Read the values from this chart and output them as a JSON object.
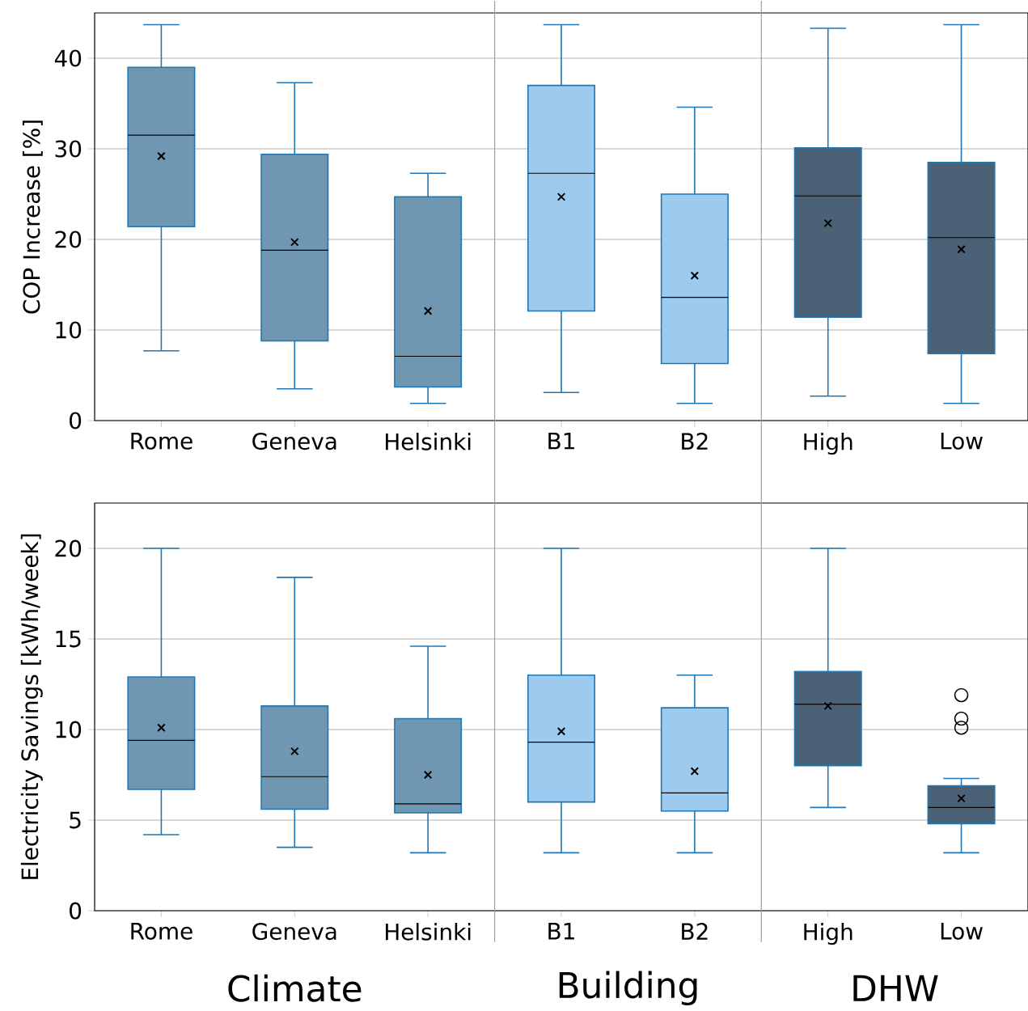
{
  "chart_data": [
    {
      "type": "box",
      "ylabel": "COP Increase [%]",
      "categories": [
        "Rome",
        "Geneva",
        "Helsinki",
        "B1",
        "B2",
        "High",
        "Low"
      ],
      "colors": [
        "#7097b2",
        "#7097b2",
        "#7097b2",
        "#9ccbef",
        "#9ccbef",
        "#4b6276",
        "#4b6276"
      ],
      "boxes": [
        {
          "low": 7.7,
          "q1": 21.4,
          "median": 31.5,
          "q3": 39.0,
          "high": 43.7,
          "mean": 29.2
        },
        {
          "low": 3.5,
          "q1": 8.8,
          "median": 18.8,
          "q3": 29.4,
          "high": 37.3,
          "mean": 19.7
        },
        {
          "low": 1.9,
          "q1": 3.7,
          "median": 7.1,
          "q3": 24.7,
          "high": 27.3,
          "mean": 12.1
        },
        {
          "low": 3.1,
          "q1": 12.1,
          "median": 27.3,
          "q3": 37.0,
          "high": 43.7,
          "mean": 24.7
        },
        {
          "low": 1.9,
          "q1": 6.3,
          "median": 13.6,
          "q3": 25.0,
          "high": 34.6,
          "mean": 16.0
        },
        {
          "low": 2.7,
          "q1": 11.4,
          "median": 24.8,
          "q3": 30.1,
          "high": 43.3,
          "mean": 21.8
        },
        {
          "low": 1.9,
          "q1": 7.4,
          "median": 20.2,
          "q3": 28.5,
          "high": 43.7,
          "mean": 18.9
        }
      ],
      "ylim": [
        0,
        45
      ],
      "yticks": [
        0,
        10,
        20,
        30,
        40
      ],
      "grid": "y",
      "marker": "cross"
    },
    {
      "type": "box",
      "ylabel": "Electricity Savings [kWh/week]",
      "categories": [
        "Rome",
        "Geneva",
        "Helsinki",
        "B1",
        "B2",
        "High",
        "Low"
      ],
      "colors": [
        "#7097b2",
        "#7097b2",
        "#7097b2",
        "#9ccbef",
        "#9ccbef",
        "#4b6276",
        "#4b6276"
      ],
      "boxes": [
        {
          "low": 4.2,
          "q1": 6.7,
          "median": 9.4,
          "q3": 12.9,
          "high": 20.0,
          "mean": 10.1
        },
        {
          "low": 3.5,
          "q1": 5.6,
          "median": 7.4,
          "q3": 11.3,
          "high": 18.4,
          "mean": 8.8
        },
        {
          "low": 3.2,
          "q1": 5.4,
          "median": 5.9,
          "q3": 10.6,
          "high": 14.6,
          "mean": 7.5
        },
        {
          "low": 3.2,
          "q1": 6.0,
          "median": 9.3,
          "q3": 13.0,
          "high": 20.0,
          "mean": 9.9
        },
        {
          "low": 3.2,
          "q1": 5.5,
          "median": 6.5,
          "q3": 11.2,
          "high": 13.0,
          "mean": 7.7
        },
        {
          "low": 5.7,
          "q1": 8.0,
          "median": 11.4,
          "q3": 13.2,
          "high": 20.0,
          "mean": 11.3
        },
        {
          "low": 3.2,
          "q1": 4.8,
          "median": 5.7,
          "q3": 6.9,
          "high": 7.3,
          "mean": 6.2,
          "outliers": [
            11.9,
            10.6,
            10.1
          ]
        }
      ],
      "ylim": [
        0,
        22.5
      ],
      "yticks": [
        0,
        5,
        10,
        15,
        20
      ],
      "grid": "y",
      "marker": "cross",
      "annotations": [
        "Climate",
        "Building",
        "DHW"
      ]
    }
  ]
}
